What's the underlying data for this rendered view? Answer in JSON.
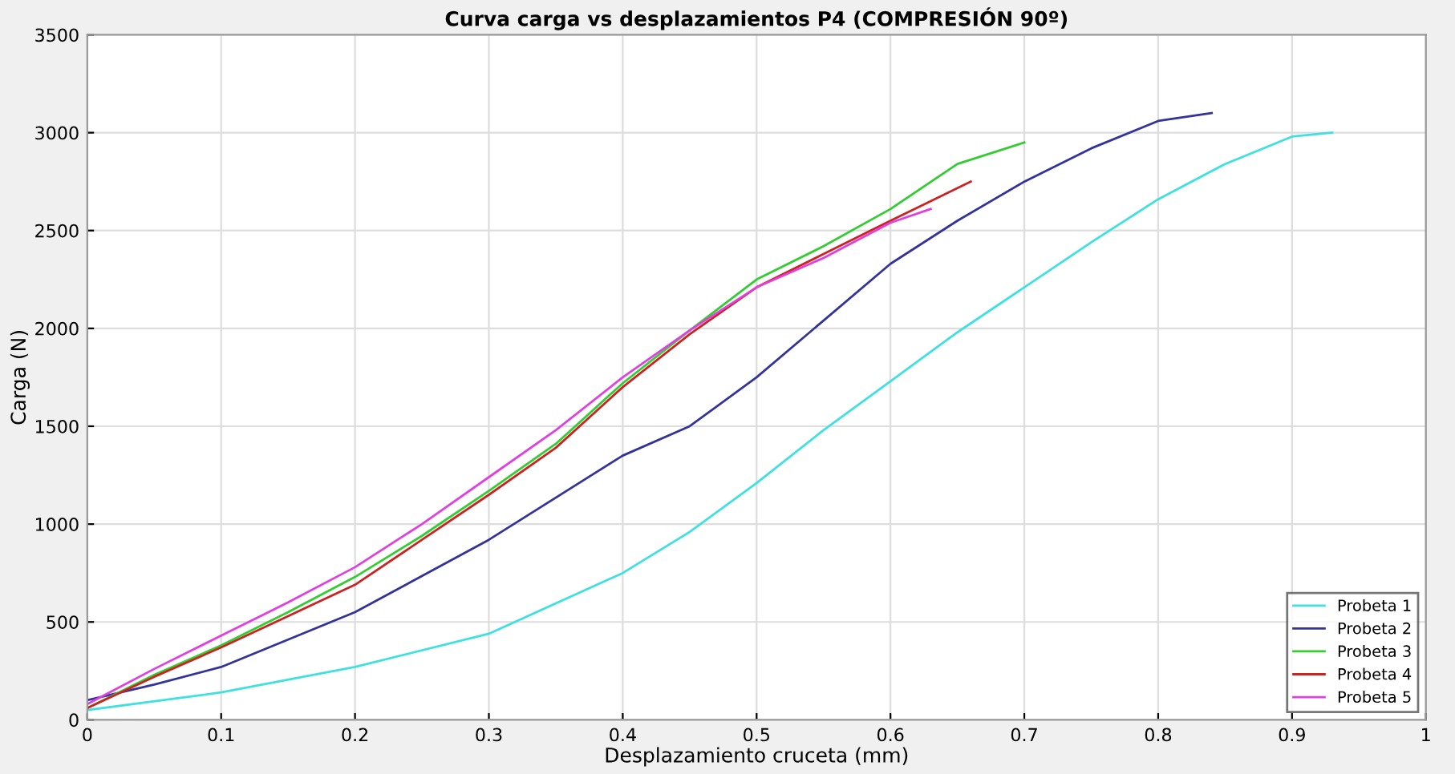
{
  "chart_data": {
    "type": "line",
    "title": "Curva carga vs desplazamientos P4 (COMPRESIÓN 90º)",
    "xlabel": "Desplazamiento cruceta (mm)",
    "ylabel": "Carga (N)",
    "xlim": [
      0,
      1
    ],
    "xticks": [
      0,
      0.1,
      0.2,
      0.3,
      0.4,
      0.5,
      0.6,
      0.7,
      0.8,
      0.9,
      1
    ],
    "ylim": [
      0,
      3500
    ],
    "yticks": [
      0,
      500,
      1000,
      1500,
      2000,
      2500,
      3000,
      3500
    ],
    "grid": true,
    "legend": "bottom right",
    "marker": "none",
    "line_style": "solid",
    "series": [
      {
        "name": "Probeta 1",
        "color": "#3fe0e0",
        "x": [
          0,
          0.1,
          0.2,
          0.3,
          0.4,
          0.45,
          0.5,
          0.55,
          0.6,
          0.65,
          0.7,
          0.75,
          0.8,
          0.85,
          0.9,
          0.93
        ],
        "values": [
          50,
          140,
          270,
          440,
          750,
          960,
          1210,
          1480,
          1730,
          1980,
          2210,
          2440,
          2660,
          2840,
          2980,
          3000
        ]
      },
      {
        "name": "Probeta 2",
        "color": "#33339a",
        "x": [
          0,
          0.05,
          0.1,
          0.2,
          0.3,
          0.4,
          0.45,
          0.5,
          0.55,
          0.6,
          0.65,
          0.7,
          0.75,
          0.8,
          0.84
        ],
        "values": [
          100,
          180,
          270,
          550,
          920,
          1350,
          1500,
          1750,
          2040,
          2330,
          2550,
          2750,
          2920,
          3060,
          3100
        ]
      },
      {
        "name": "Probeta 3",
        "color": "#33cc33",
        "x": [
          0,
          0.05,
          0.1,
          0.15,
          0.2,
          0.25,
          0.3,
          0.35,
          0.4,
          0.45,
          0.5,
          0.55,
          0.6,
          0.65,
          0.7
        ],
        "values": [
          60,
          230,
          380,
          550,
          730,
          940,
          1170,
          1410,
          1720,
          1990,
          2250,
          2420,
          2610,
          2840,
          2950
        ]
      },
      {
        "name": "Probeta 4",
        "color": "#cc2222",
        "x": [
          0,
          0.05,
          0.1,
          0.15,
          0.2,
          0.25,
          0.3,
          0.35,
          0.4,
          0.45,
          0.5,
          0.55,
          0.6,
          0.66
        ],
        "values": [
          60,
          220,
          370,
          530,
          690,
          920,
          1150,
          1390,
          1700,
          1970,
          2210,
          2380,
          2550,
          2750
        ]
      },
      {
        "name": "Probeta 5",
        "color": "#e040e0",
        "x": [
          0,
          0.05,
          0.1,
          0.15,
          0.2,
          0.25,
          0.3,
          0.35,
          0.4,
          0.45,
          0.5,
          0.55,
          0.6,
          0.63
        ],
        "values": [
          80,
          260,
          430,
          600,
          780,
          1000,
          1240,
          1480,
          1750,
          1990,
          2210,
          2360,
          2540,
          2610
        ]
      }
    ]
  }
}
